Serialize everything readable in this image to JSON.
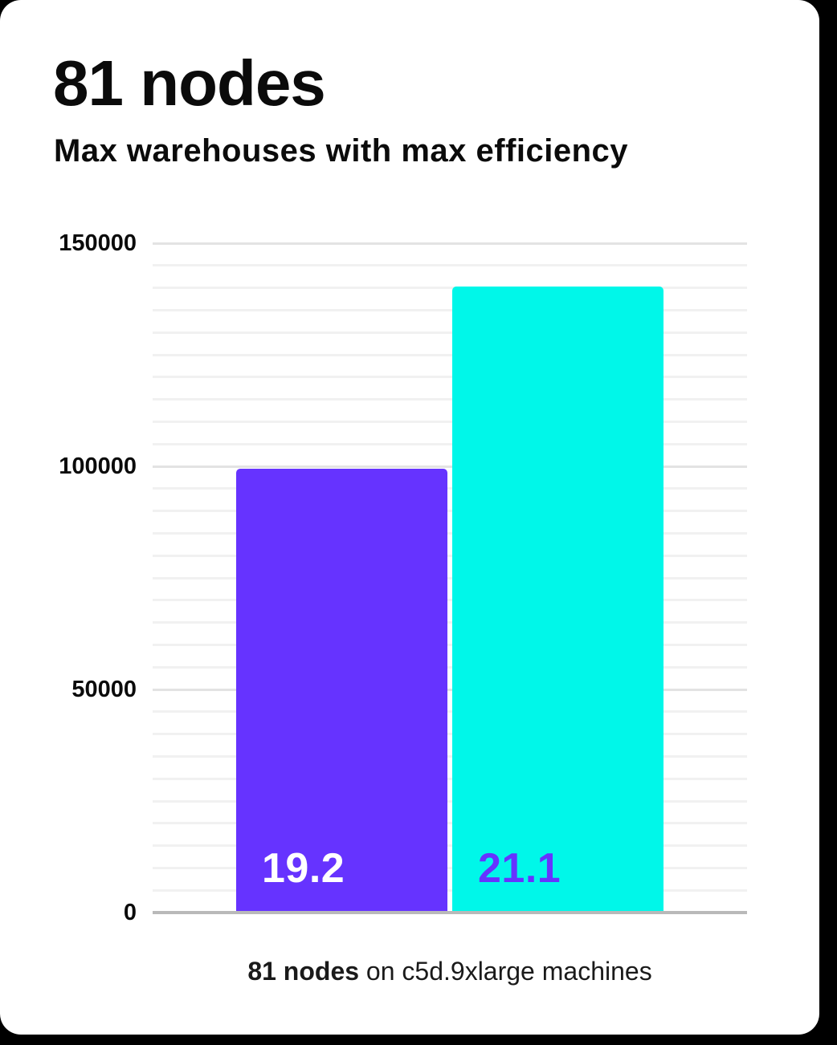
{
  "header": {
    "title": "81 nodes",
    "subtitle": "Max warehouses with max efficiency"
  },
  "caption": {
    "bold": "81 nodes",
    "rest": " on c5d.9xlarge machines"
  },
  "colors": {
    "page_background": "#000000",
    "card_background": "#FFFFFF",
    "text": "#0B0B0B",
    "grid_minor": "#F1F1F1",
    "grid_major": "#E3E3E3",
    "axis_line": "#B9B9B9",
    "bar_purple": "#6633FF",
    "bar_cyan": "#00F7E9",
    "bar_purple_label": "#FFFFFF",
    "bar_cyan_label": "#6633FF"
  },
  "chart_data": {
    "type": "bar",
    "title": "81 nodes",
    "subtitle": "Max warehouses with max efficiency",
    "categories": [
      "bar-1",
      "bar-2"
    ],
    "values": [
      99500,
      140300
    ],
    "bar_labels": [
      "19.2",
      "21.1"
    ],
    "bar_colors": [
      "#6633FF",
      "#00F7E9"
    ],
    "bar_label_colors": [
      "#FFFFFF",
      "#6633FF"
    ],
    "xlabel": "",
    "ylabel": "",
    "ylim": [
      0,
      150000
    ],
    "yticks": [
      0,
      50000,
      100000,
      150000
    ],
    "ytick_labels": [
      "0",
      "50000",
      "100000",
      "150000"
    ],
    "grid_minor_step": 5000,
    "grid": true,
    "legend": false,
    "caption": "81 nodes on c5d.9xlarge machines"
  }
}
